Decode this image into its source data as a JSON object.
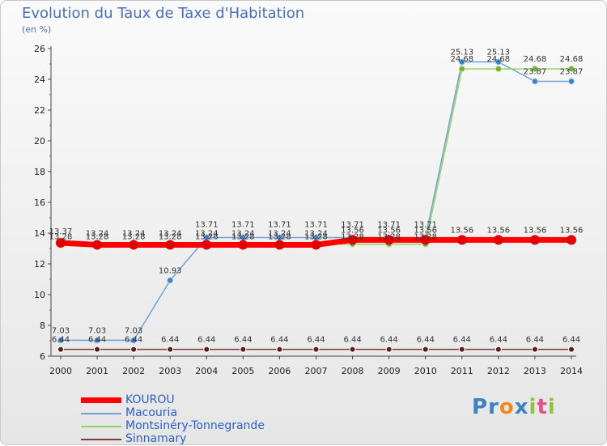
{
  "header": {
    "title": "Evolution du Taux de Taxe d'Habitation",
    "subtitle": "(en %)"
  },
  "logo": {
    "text": "Proxiti",
    "letters": [
      {
        "ch": "P",
        "color": "#3b82c4"
      },
      {
        "ch": "r",
        "color": "#3b82c4"
      },
      {
        "ch": "o",
        "color": "#f08a1c"
      },
      {
        "ch": "x",
        "color": "#3b82c4"
      },
      {
        "ch": "i",
        "color": "#8cc63e"
      },
      {
        "ch": "t",
        "color": "#e94d8a"
      },
      {
        "ch": "i",
        "color": "#8cc63e"
      }
    ]
  },
  "chart_data": {
    "type": "line",
    "title": "Evolution du Taux de Taxe d'Habitation",
    "ylabel": "(en %)",
    "xlabel": "",
    "x": [
      "2000",
      "2001",
      "2002",
      "2003",
      "2004",
      "2005",
      "2006",
      "2007",
      "2008",
      "2009",
      "2010",
      "2011",
      "2012",
      "2013",
      "2014"
    ],
    "ylim": [
      6,
      26
    ],
    "yticks": [
      6,
      8,
      10,
      12,
      14,
      16,
      18,
      20,
      22,
      24,
      26
    ],
    "grid": false,
    "legend_position": "bottom-left",
    "series": [
      {
        "name": "KOUROU",
        "color": "#ff0000",
        "bold": true,
        "values": [
          13.37,
          13.24,
          13.24,
          13.24,
          13.24,
          13.24,
          13.24,
          13.24,
          13.56,
          13.56,
          13.56,
          13.56,
          13.56,
          13.56,
          13.56
        ],
        "labels": [
          "13.37",
          "13.24",
          "13.24",
          "13.24",
          "13.24",
          "13.24",
          "13.24",
          "13.24",
          "13.56",
          "13.56",
          "13.56",
          "13.56",
          "13.56",
          "13.56",
          "13.56"
        ]
      },
      {
        "name": "Macouria",
        "color": "#6fa3d6",
        "bold": false,
        "values": [
          7.03,
          7.03,
          7.03,
          10.93,
          13.71,
          13.71,
          13.71,
          13.71,
          13.71,
          13.71,
          13.71,
          25.13,
          25.13,
          23.87,
          23.87
        ],
        "labels": [
          "7.03",
          "7.03",
          "7.03",
          "10.93",
          "13.71",
          "13.71",
          "13.71",
          "13.71",
          "13.71",
          "13.71",
          "13.71",
          "25.13",
          "25.13",
          "23.87",
          "23.87"
        ]
      },
      {
        "name": "Montsinéry-Tonnegrande",
        "color": "#93d35f",
        "bold": false,
        "values": [
          13.28,
          13.28,
          13.28,
          13.28,
          13.28,
          13.28,
          13.28,
          13.28,
          13.28,
          13.28,
          13.28,
          24.68,
          24.68,
          24.68,
          24.68
        ],
        "labels": [
          "13.28",
          "13.28",
          "13.28",
          "13.28",
          "13.28",
          "13.28",
          "13.28",
          "13.28",
          "13.28",
          "13.28",
          "13.28",
          "24.68",
          "24.68",
          "24.68",
          "24.68"
        ]
      },
      {
        "name": "Sinnamary",
        "color": "#7a3b3b",
        "bold": false,
        "values": [
          6.44,
          6.44,
          6.44,
          6.44,
          6.44,
          6.44,
          6.44,
          6.44,
          6.44,
          6.44,
          6.44,
          6.44,
          6.44,
          6.44,
          6.44
        ],
        "labels": [
          "6.44",
          "6.44",
          "6.44",
          "6.44",
          "6.44",
          "6.44",
          "6.44",
          "6.44",
          "6.44",
          "6.44",
          "6.44",
          "6.44",
          "6.44",
          "6.44",
          "6.44"
        ]
      }
    ]
  }
}
